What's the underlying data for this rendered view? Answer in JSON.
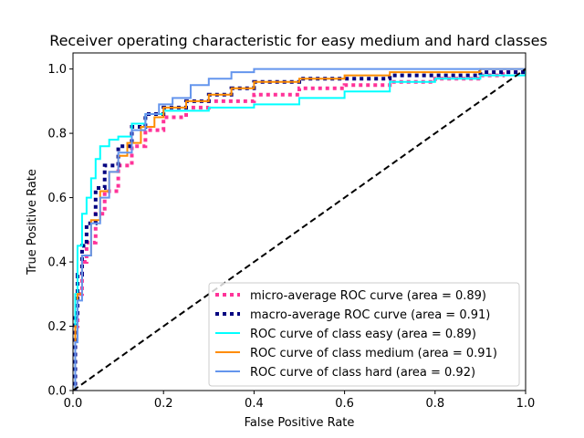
{
  "chart_data": {
    "type": "line",
    "title": "Receiver operating characteristic for easy medium and hard classes",
    "xlabel": "False Positive Rate",
    "ylabel": "True Positive Rate",
    "xlim": [
      0.0,
      1.0
    ],
    "ylim": [
      0.0,
      1.05
    ],
    "xticks": [
      "0.0",
      "0.2",
      "0.4",
      "0.6",
      "0.8",
      "1.0"
    ],
    "yticks": [
      "0.0",
      "0.2",
      "0.4",
      "0.6",
      "0.8",
      "1.0"
    ],
    "grid": false,
    "legend_position": "lower-right",
    "chance_line": {
      "x": [
        0,
        1
      ],
      "y": [
        0,
        1
      ],
      "color": "#000000",
      "style": "dashed"
    },
    "series": [
      {
        "name": "micro-average ROC curve (area = 0.89)",
        "color": "#ff3399",
        "style": "dotted",
        "x": [
          0,
          0.005,
          0.01,
          0.02,
          0.03,
          0.05,
          0.07,
          0.1,
          0.13,
          0.16,
          0.2,
          0.25,
          0.3,
          0.4,
          0.5,
          0.6,
          0.7,
          0.8,
          0.9,
          0.95,
          1.0
        ],
        "y": [
          0,
          0.2,
          0.3,
          0.4,
          0.46,
          0.55,
          0.62,
          0.7,
          0.76,
          0.81,
          0.85,
          0.88,
          0.9,
          0.92,
          0.94,
          0.95,
          0.96,
          0.97,
          0.98,
          0.99,
          1.0
        ]
      },
      {
        "name": "macro-average ROC curve (area = 0.91)",
        "color": "#000080",
        "style": "dotted",
        "x": [
          0,
          0.005,
          0.01,
          0.02,
          0.03,
          0.05,
          0.07,
          0.1,
          0.13,
          0.16,
          0.2,
          0.25,
          0.3,
          0.35,
          0.4,
          0.5,
          0.6,
          0.7,
          0.8,
          0.9,
          1.0
        ],
        "y": [
          0,
          0.24,
          0.36,
          0.45,
          0.52,
          0.63,
          0.7,
          0.76,
          0.82,
          0.86,
          0.88,
          0.9,
          0.92,
          0.94,
          0.96,
          0.97,
          0.97,
          0.98,
          0.98,
          0.99,
          1.0
        ]
      },
      {
        "name": "ROC curve of class easy (area = 0.89)",
        "color": "#00ffff",
        "style": "solid",
        "x": [
          0,
          0.005,
          0.01,
          0.02,
          0.03,
          0.04,
          0.05,
          0.06,
          0.08,
          0.1,
          0.13,
          0.16,
          0.2,
          0.3,
          0.4,
          0.5,
          0.6,
          0.7,
          0.8,
          0.9,
          1.0
        ],
        "y": [
          0,
          0.3,
          0.45,
          0.55,
          0.6,
          0.66,
          0.72,
          0.76,
          0.78,
          0.79,
          0.83,
          0.86,
          0.87,
          0.88,
          0.89,
          0.91,
          0.93,
          0.96,
          0.97,
          0.98,
          1.0
        ]
      },
      {
        "name": "ROC curve of class medium (area = 0.91)",
        "color": "#ff8c00",
        "style": "solid",
        "x": [
          0,
          0.005,
          0.01,
          0.02,
          0.04,
          0.06,
          0.08,
          0.1,
          0.12,
          0.15,
          0.18,
          0.2,
          0.25,
          0.3,
          0.35,
          0.4,
          0.5,
          0.6,
          0.7,
          0.8,
          0.9,
          1.0
        ],
        "y": [
          0,
          0.2,
          0.3,
          0.42,
          0.53,
          0.62,
          0.68,
          0.73,
          0.77,
          0.82,
          0.85,
          0.88,
          0.9,
          0.92,
          0.94,
          0.96,
          0.97,
          0.98,
          0.99,
          0.99,
          1.0,
          1.0
        ]
      },
      {
        "name": "ROC curve of class hard (area = 0.92)",
        "color": "#6495ed",
        "style": "solid",
        "x": [
          0,
          0.005,
          0.01,
          0.02,
          0.04,
          0.06,
          0.08,
          0.1,
          0.13,
          0.16,
          0.19,
          0.22,
          0.26,
          0.3,
          0.35,
          0.4,
          0.45,
          0.5,
          0.6,
          0.7,
          0.8,
          0.9,
          1.0
        ],
        "y": [
          0,
          0.15,
          0.28,
          0.42,
          0.52,
          0.6,
          0.68,
          0.74,
          0.81,
          0.86,
          0.89,
          0.91,
          0.95,
          0.97,
          0.99,
          1.0,
          1.0,
          1.0,
          1.0,
          1.0,
          1.0,
          1.0,
          1.0
        ]
      }
    ]
  }
}
